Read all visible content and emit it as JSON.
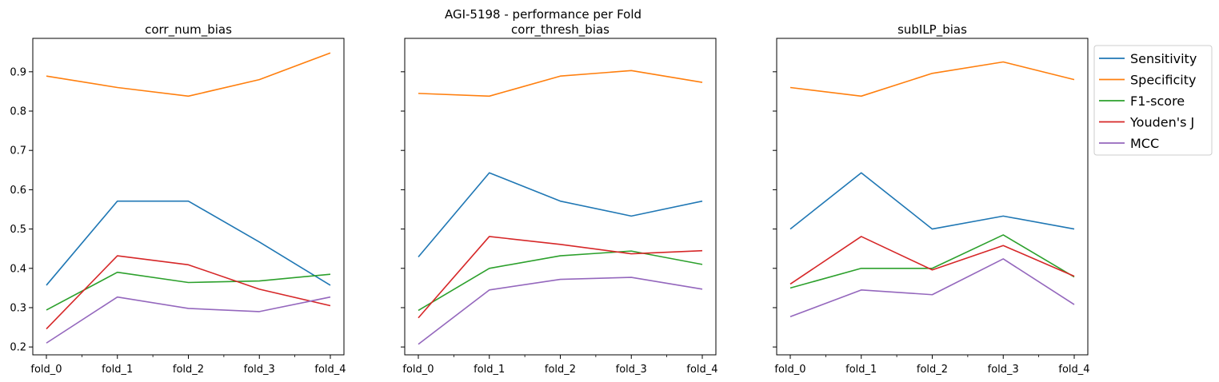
{
  "figure": {
    "suptitle": "AGI-5198 - performance per Fold"
  },
  "legend": {
    "placement": "outside-right",
    "entries": [
      {
        "name": "Sensitivity",
        "color": "#1f77b4"
      },
      {
        "name": "Specificity",
        "color": "#ff7f0e"
      },
      {
        "name": "F1-score",
        "color": "#2ca02c"
      },
      {
        "name": "Youden's J",
        "color": "#d62728"
      },
      {
        "name": "MCC",
        "color": "#9467bd"
      }
    ]
  },
  "chart_data": [
    {
      "type": "line",
      "title": "corr_num_bias",
      "x": [
        "fold_0",
        "fold_1",
        "fold_2",
        "fold_3",
        "fold_4"
      ],
      "ylim": [
        0.18,
        0.985
      ],
      "yticks": [
        0.2,
        0.3,
        0.4,
        0.5,
        0.6,
        0.7,
        0.8,
        0.9
      ],
      "show_y_labels": true,
      "grid": false,
      "series": [
        {
          "name": "Sensitivity",
          "color": "#1f77b4",
          "values": [
            0.357,
            0.571,
            0.571,
            0.467,
            0.357
          ]
        },
        {
          "name": "Specificity",
          "color": "#ff7f0e",
          "values": [
            0.889,
            0.86,
            0.838,
            0.88,
            0.948
          ]
        },
        {
          "name": "F1-score",
          "color": "#2ca02c",
          "values": [
            0.294,
            0.39,
            0.364,
            0.368,
            0.385
          ]
        },
        {
          "name": "Youden's J",
          "color": "#d62728",
          "values": [
            0.246,
            0.432,
            0.409,
            0.347,
            0.305
          ]
        },
        {
          "name": "MCC",
          "color": "#9467bd",
          "values": [
            0.21,
            0.327,
            0.298,
            0.29,
            0.327
          ]
        }
      ]
    },
    {
      "type": "line",
      "title": "corr_thresh_bias",
      "x": [
        "fold_0",
        "fold_1",
        "fold_2",
        "fold_3",
        "fold_4"
      ],
      "ylim": [
        0.18,
        0.985
      ],
      "yticks": [
        0.2,
        0.3,
        0.4,
        0.5,
        0.6,
        0.7,
        0.8,
        0.9
      ],
      "show_y_labels": false,
      "grid": false,
      "series": [
        {
          "name": "Sensitivity",
          "color": "#1f77b4",
          "values": [
            0.429,
            0.643,
            0.571,
            0.533,
            0.571
          ]
        },
        {
          "name": "Specificity",
          "color": "#ff7f0e",
          "values": [
            0.845,
            0.838,
            0.889,
            0.903,
            0.873
          ]
        },
        {
          "name": "F1-score",
          "color": "#2ca02c",
          "values": [
            0.293,
            0.4,
            0.432,
            0.444,
            0.41
          ]
        },
        {
          "name": "Youden's J",
          "color": "#d62728",
          "values": [
            0.274,
            0.481,
            0.461,
            0.437,
            0.445
          ]
        },
        {
          "name": "MCC",
          "color": "#9467bd",
          "values": [
            0.207,
            0.345,
            0.372,
            0.377,
            0.347
          ]
        }
      ]
    },
    {
      "type": "line",
      "title": "subILP_bias",
      "x": [
        "fold_0",
        "fold_1",
        "fold_2",
        "fold_3",
        "fold_4"
      ],
      "ylim": [
        0.18,
        0.985
      ],
      "yticks": [
        0.2,
        0.3,
        0.4,
        0.5,
        0.6,
        0.7,
        0.8,
        0.9
      ],
      "show_y_labels": false,
      "grid": false,
      "series": [
        {
          "name": "Sensitivity",
          "color": "#1f77b4",
          "values": [
            0.5,
            0.643,
            0.5,
            0.533,
            0.5
          ]
        },
        {
          "name": "Specificity",
          "color": "#ff7f0e",
          "values": [
            0.86,
            0.838,
            0.896,
            0.925,
            0.88
          ]
        },
        {
          "name": "F1-score",
          "color": "#2ca02c",
          "values": [
            0.35,
            0.4,
            0.4,
            0.485,
            0.378
          ]
        },
        {
          "name": "Youden's J",
          "color": "#d62728",
          "values": [
            0.36,
            0.481,
            0.396,
            0.458,
            0.38
          ]
        },
        {
          "name": "MCC",
          "color": "#9467bd",
          "values": [
            0.277,
            0.345,
            0.333,
            0.424,
            0.308
          ]
        }
      ]
    }
  ]
}
